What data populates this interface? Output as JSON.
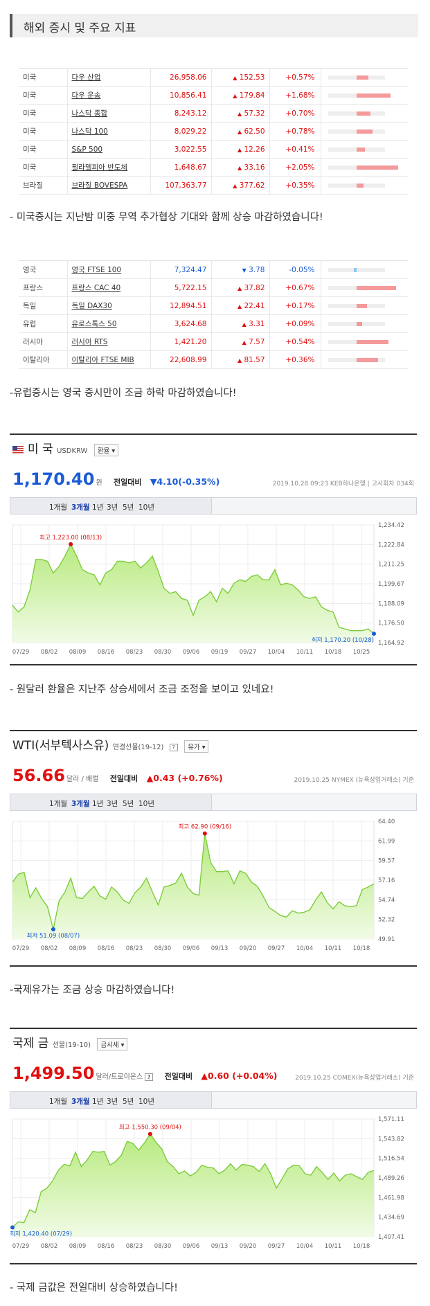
{
  "heading": "해외 증시 및 주요 지표",
  "us_table": [
    {
      "country": "미국",
      "name": "다우 산업",
      "value": "26,958.06",
      "change": "152.53",
      "pct": "+0.57%",
      "dir": "up",
      "bar": 0.57
    },
    {
      "country": "미국",
      "name": "다우 운송",
      "value": "10,856.41",
      "change": "179.84",
      "pct": "+1.68%",
      "dir": "up",
      "bar": 1.68
    },
    {
      "country": "미국",
      "name": "나스닥 종합",
      "value": "8,243.12",
      "change": "57.32",
      "pct": "+0.70%",
      "dir": "up",
      "bar": 0.7
    },
    {
      "country": "미국",
      "name": "나스닥 100",
      "value": "8,029.22",
      "change": "62.50",
      "pct": "+0.78%",
      "dir": "up",
      "bar": 0.78
    },
    {
      "country": "미국",
      "name": "S&P 500",
      "value": "3,022.55",
      "change": "12.26",
      "pct": "+0.41%",
      "dir": "up",
      "bar": 0.41
    },
    {
      "country": "미국",
      "name": "필라델피아 반도체",
      "value": "1,648.67",
      "change": "33.16",
      "pct": "+2.05%",
      "dir": "up",
      "bar": 2.05
    },
    {
      "country": "브라질",
      "name": "브라질 BOVESPA",
      "value": "107,363.77",
      "change": "377.62",
      "pct": "+0.35%",
      "dir": "up",
      "bar": 0.35
    }
  ],
  "note1": "- 미국증시는 지난밤 미중 무역 추가협상 기대와 함께 상승 마감하였습니다!",
  "eu_table": [
    {
      "country": "영국",
      "name": "영국 FTSE 100",
      "value": "7,324.47",
      "change": "3.78",
      "pct": "-0.05%",
      "dir": "down",
      "bar": 0.05
    },
    {
      "country": "프랑스",
      "name": "프랑스 CAC 40",
      "value": "5,722.15",
      "change": "37.82",
      "pct": "+0.67%",
      "dir": "up",
      "bar": 0.67
    },
    {
      "country": "독일",
      "name": "독일 DAX30",
      "value": "12,894.51",
      "change": "22.41",
      "pct": "+0.17%",
      "dir": "up",
      "bar": 0.17
    },
    {
      "country": "유럽",
      "name": "유로스톡스 50",
      "value": "3,624.68",
      "change": "3.31",
      "pct": "+0.09%",
      "dir": "up",
      "bar": 0.09
    },
    {
      "country": "러시아",
      "name": "러시아 RTS",
      "value": "1,421.20",
      "change": "7.57",
      "pct": "+0.54%",
      "dir": "up",
      "bar": 0.54
    },
    {
      "country": "이탈리아",
      "name": "이탈리아 FTSE MIB",
      "value": "22,608.99",
      "change": "81.57",
      "pct": "+0.36%",
      "dir": "up",
      "bar": 0.36
    }
  ],
  "note2": "-유럽증시는 영국 증시만이 조금 하락 마감하였습니다!",
  "note3": "- 원달러 환율은 지난주 상승세에서 조금 조정을 보이고 있네요!",
  "note4": "-국제유가는 조금 상승 마감하였습니다!",
  "note5": "- 국제 금값은 전일대비 상승하였습니다!",
  "tabs": [
    "1개월",
    "3개월",
    "1년",
    "3년",
    "5년",
    "10년"
  ],
  "panels": {
    "usd": {
      "title": "미 국",
      "subtitle": "USDKRW",
      "button": "환율",
      "price": "1,170.40",
      "unit": "원",
      "cmp_label": "전일대비",
      "cmp": "▼4.10(-0.35%)",
      "dir": "down",
      "meta": "2019.10.28 09:23 KEB하나은행 | 고시회차 034회"
    },
    "wti": {
      "title": "WTI(서부텍사스유)",
      "subtitle": "연결선물(19-12)",
      "button": "유가",
      "price": "56.66",
      "unit": "달러 / 배럴",
      "cmp_label": "전일대비",
      "cmp": "▲0.43 (+0.76%)",
      "dir": "up",
      "meta": "2019.10.25 NYMEX (뉴욕상업거래소) 기준"
    },
    "gold": {
      "title": "국제 금",
      "subtitle": "선물(19-10)",
      "button": "금시세",
      "price": "1,499.50",
      "unit": "달러/트로이온스",
      "cmp_label": "전일대비",
      "cmp": "▲0.60 (+0.04%)",
      "dir": "up",
      "meta": "2019.10.25 COMEX(뉴욕상업거래소) 기준"
    }
  },
  "chart_data": [
    {
      "type": "area",
      "title": "USDKRW",
      "x_labels": [
        "07/29",
        "08/02",
        "08/09",
        "08/16",
        "08/23",
        "08/30",
        "09/06",
        "09/19",
        "09/27",
        "10/04",
        "10/11",
        "10/18",
        "10/25"
      ],
      "ylim": [
        1164.92,
        1234.42
      ],
      "yticks": [
        "1,234.42",
        "1,222.84",
        "1,211.25",
        "1,199.67",
        "1,188.09",
        "1,176.50",
        "1,164.92"
      ],
      "values": [
        1187,
        1183,
        1186,
        1196,
        1214,
        1214,
        1213,
        1206,
        1210,
        1216,
        1223,
        1216,
        1208,
        1206,
        1205,
        1199,
        1206,
        1208,
        1213,
        1213,
        1212,
        1213,
        1209,
        1212,
        1216,
        1207,
        1197,
        1194,
        1195,
        1191,
        1190,
        1181,
        1190,
        1192,
        1195,
        1189,
        1197,
        1194,
        1200,
        1202,
        1201,
        1204,
        1205,
        1202,
        1202,
        1208,
        1199,
        1200,
        1199,
        1196,
        1192,
        1191,
        1192,
        1186,
        1184,
        1183,
        1174,
        1173,
        1172,
        1172,
        1172,
        1173,
        1170.2
      ],
      "high": "최고 1,223.00 (08/13)",
      "low": "최저 1,170.20 (10/28)"
    },
    {
      "type": "area",
      "title": "WTI",
      "x_labels": [
        "07/29",
        "08/02",
        "08/09",
        "08/16",
        "08/23",
        "08/30",
        "09/06",
        "09/13",
        "09/20",
        "09/27",
        "10/04",
        "10/11",
        "10/18"
      ],
      "ylim": [
        49.91,
        64.4
      ],
      "yticks": [
        "64.40",
        "61.99",
        "59.57",
        "57.16",
        "54.74",
        "52.32",
        "49.91"
      ],
      "values": [
        56.9,
        57.9,
        58.1,
        55.0,
        56.2,
        54.9,
        53.9,
        51.1,
        54.6,
        55.7,
        57.4,
        55.0,
        54.9,
        55.7,
        56.4,
        55.2,
        54.8,
        56.3,
        55.7,
        54.7,
        54.3,
        55.6,
        56.3,
        57.4,
        55.7,
        54.1,
        56.3,
        56.5,
        56.8,
        58.0,
        56.3,
        55.5,
        55.3,
        62.9,
        59.3,
        58.2,
        58.2,
        58.3,
        56.7,
        58.3,
        58.0,
        56.9,
        56.4,
        55.2,
        53.8,
        53.3,
        52.8,
        52.6,
        53.4,
        53.1,
        53.2,
        53.5,
        54.7,
        55.7,
        54.4,
        53.6,
        54.5,
        54.0,
        53.9,
        54.0,
        56.0,
        56.3,
        56.7
      ]
    },
    {
      "type": "area",
      "title": "국제 금",
      "x_labels": [
        "07/29",
        "08/02",
        "08/09",
        "08/16",
        "08/23",
        "08/30",
        "09/06",
        "09/13",
        "09/20",
        "09/27",
        "10/04",
        "10/11",
        "10/18"
      ],
      "ylim": [
        1407.41,
        1571.11
      ],
      "yticks": [
        "1,571.11",
        "1,543.82",
        "1,516.54",
        "1,489.26",
        "1,461.98",
        "1,434.69",
        "1,407.41"
      ],
      "values": [
        1420.4,
        1428,
        1427,
        1445,
        1441,
        1470,
        1475,
        1485,
        1500,
        1508,
        1506,
        1525,
        1505,
        1514,
        1526,
        1525,
        1526,
        1507,
        1512,
        1521,
        1540,
        1537,
        1528,
        1538,
        1550.3,
        1539,
        1530,
        1512,
        1505,
        1495,
        1499,
        1492,
        1497,
        1507,
        1504,
        1503,
        1495,
        1500,
        1509,
        1500,
        1508,
        1507,
        1505,
        1498,
        1509,
        1495,
        1475,
        1488,
        1502,
        1507,
        1506,
        1495,
        1493,
        1505,
        1497,
        1487,
        1496,
        1485,
        1493,
        1495,
        1491,
        1487,
        1497,
        1499.5
      ],
      "high": "최고 1,550.30 (09/04)",
      "low": "최저 1,420.40 (07/29)"
    }
  ],
  "wti_high": "최고 62.90 (09/16)",
  "wti_low": "최저 51.09 (08/07)"
}
